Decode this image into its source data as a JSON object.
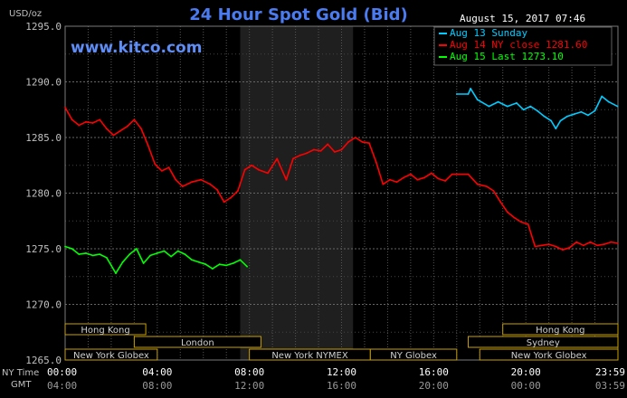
{
  "header": {
    "unit": "USD/oz",
    "title": "24 Hour Spot Gold (Bid)",
    "timestamp": "August 15, 2017 07:46",
    "watermark": "www.kitco.com"
  },
  "legend": [
    {
      "label": "Aug 13 Sunday",
      "color": "#00ccff"
    },
    {
      "label": "Aug 14 NY close 1281.60",
      "color": "#ff0000"
    },
    {
      "label": "Aug 15 Last 1273.10",
      "color": "#00ff00"
    }
  ],
  "axis_labels": {
    "ny_time": "NY Time",
    "gmt": "GMT"
  },
  "sessions": [
    {
      "label": "Hong Kong",
      "start": 0.0,
      "end": 3.5
    },
    {
      "label": "London",
      "start": 3.0,
      "end": 8.5
    },
    {
      "label": "New York Globex",
      "start": 0.0,
      "end": 4.0
    },
    {
      "label": "New York NYMEX",
      "start": 8.0,
      "end": 13.25
    },
    {
      "label": "NY Globex",
      "start": 13.25,
      "end": 17.0
    },
    {
      "label": "Hong Kong",
      "start": 19.0,
      "end": 24.0
    },
    {
      "label": "Sydney",
      "start": 17.5,
      "end": 24.0
    },
    {
      "label": "New York Globex",
      "start": 18.0,
      "end": 24.0
    }
  ],
  "chart_data": {
    "type": "line",
    "title": "24 Hour Spot Gold (Bid)",
    "ylabel": "USD/oz",
    "xlim": [
      0,
      24
    ],
    "ylim": [
      1265,
      1295
    ],
    "y_ticks": [
      "1265.0",
      "1270.0",
      "1275.0",
      "1280.0",
      "1285.0",
      "1290.0",
      "1295.0"
    ],
    "x_ticks_ny": [
      "00:00",
      "04:00",
      "08:00",
      "12:00",
      "16:00",
      "20:00",
      "23:59"
    ],
    "x_ticks_gmt": [
      "04:00",
      "08:00",
      "12:00",
      "16:00",
      "20:00",
      "00:00",
      "03:59"
    ],
    "x_tick_hours": [
      0,
      4,
      8,
      12,
      16,
      20,
      23.98
    ],
    "grid": true,
    "legend_position": "top-right",
    "shaded_range": [
      7.6,
      12.5
    ],
    "series": [
      {
        "name": "Aug 13 Sunday",
        "color": "#00ccff",
        "x": [
          17.0,
          17.5,
          17.6,
          17.9,
          18.4,
          18.8,
          19.2,
          19.6,
          19.9,
          20.2,
          20.5,
          20.8,
          21.1,
          21.3,
          21.5,
          21.8,
          22.1,
          22.4,
          22.7,
          23.0,
          23.3,
          23.6,
          23.98
        ],
        "values": [
          1288.9,
          1288.9,
          1289.4,
          1288.4,
          1287.8,
          1288.2,
          1287.8,
          1288.1,
          1287.5,
          1287.8,
          1287.4,
          1286.9,
          1286.5,
          1285.8,
          1286.5,
          1286.9,
          1287.1,
          1287.3,
          1287.0,
          1287.4,
          1288.7,
          1288.2,
          1287.8
        ]
      },
      {
        "name": "Aug 14 NY close 1281.60",
        "color": "#ff0000",
        "x": [
          0.0,
          0.3,
          0.6,
          0.9,
          1.2,
          1.5,
          1.8,
          2.1,
          2.4,
          2.7,
          3.0,
          3.3,
          3.6,
          3.9,
          4.2,
          4.5,
          4.8,
          5.1,
          5.5,
          5.9,
          6.3,
          6.6,
          6.9,
          7.2,
          7.5,
          7.8,
          8.1,
          8.4,
          8.8,
          9.2,
          9.6,
          9.9,
          10.2,
          10.5,
          10.8,
          11.1,
          11.4,
          11.7,
          12.0,
          12.3,
          12.6,
          12.9,
          13.2,
          13.5,
          13.8,
          14.1,
          14.4,
          14.7,
          15.0,
          15.3,
          15.6,
          15.9,
          16.2,
          16.5,
          16.8,
          17.1,
          17.5,
          17.9,
          18.3,
          18.6,
          18.9,
          19.2,
          19.5,
          19.8,
          20.1,
          20.4,
          20.7,
          21.0,
          21.3,
          21.6,
          21.9,
          22.2,
          22.5,
          22.8,
          23.1,
          23.4,
          23.7,
          23.98
        ],
        "values": [
          1287.7,
          1286.6,
          1286.1,
          1286.4,
          1286.3,
          1286.6,
          1285.8,
          1285.2,
          1285.6,
          1286.0,
          1286.6,
          1285.8,
          1284.3,
          1282.6,
          1282.0,
          1282.3,
          1281.2,
          1280.6,
          1281.0,
          1281.2,
          1280.8,
          1280.3,
          1279.2,
          1279.6,
          1280.2,
          1282.1,
          1282.5,
          1282.1,
          1281.8,
          1283.1,
          1281.2,
          1283.1,
          1283.4,
          1283.6,
          1283.9,
          1283.8,
          1284.4,
          1283.7,
          1283.9,
          1284.6,
          1285.0,
          1284.6,
          1284.5,
          1282.8,
          1280.8,
          1281.2,
          1281.0,
          1281.4,
          1281.7,
          1281.2,
          1281.4,
          1281.8,
          1281.3,
          1281.1,
          1281.7,
          1281.7,
          1281.7,
          1280.8,
          1280.6,
          1280.2,
          1279.2,
          1278.3,
          1277.8,
          1277.4,
          1277.2,
          1275.2,
          1275.3,
          1275.4,
          1275.2,
          1274.9,
          1275.1,
          1275.6,
          1275.3,
          1275.6,
          1275.3,
          1275.4,
          1275.6,
          1275.5
        ]
      },
      {
        "name": "Aug 15 Last 1273.10",
        "color": "#00ff00",
        "x": [
          0.0,
          0.3,
          0.6,
          0.9,
          1.2,
          1.5,
          1.8,
          2.0,
          2.2,
          2.5,
          2.8,
          3.1,
          3.4,
          3.7,
          4.0,
          4.3,
          4.6,
          4.9,
          5.2,
          5.5,
          5.8,
          6.1,
          6.4,
          6.7,
          7.0,
          7.3,
          7.6,
          7.9
        ],
        "values": [
          1275.2,
          1275.0,
          1274.5,
          1274.6,
          1274.4,
          1274.5,
          1274.2,
          1273.5,
          1272.8,
          1273.8,
          1274.5,
          1275.0,
          1273.7,
          1274.4,
          1274.6,
          1274.8,
          1274.3,
          1274.8,
          1274.5,
          1274.0,
          1273.8,
          1273.6,
          1273.2,
          1273.6,
          1273.5,
          1273.7,
          1274.0,
          1273.4
        ]
      }
    ]
  }
}
